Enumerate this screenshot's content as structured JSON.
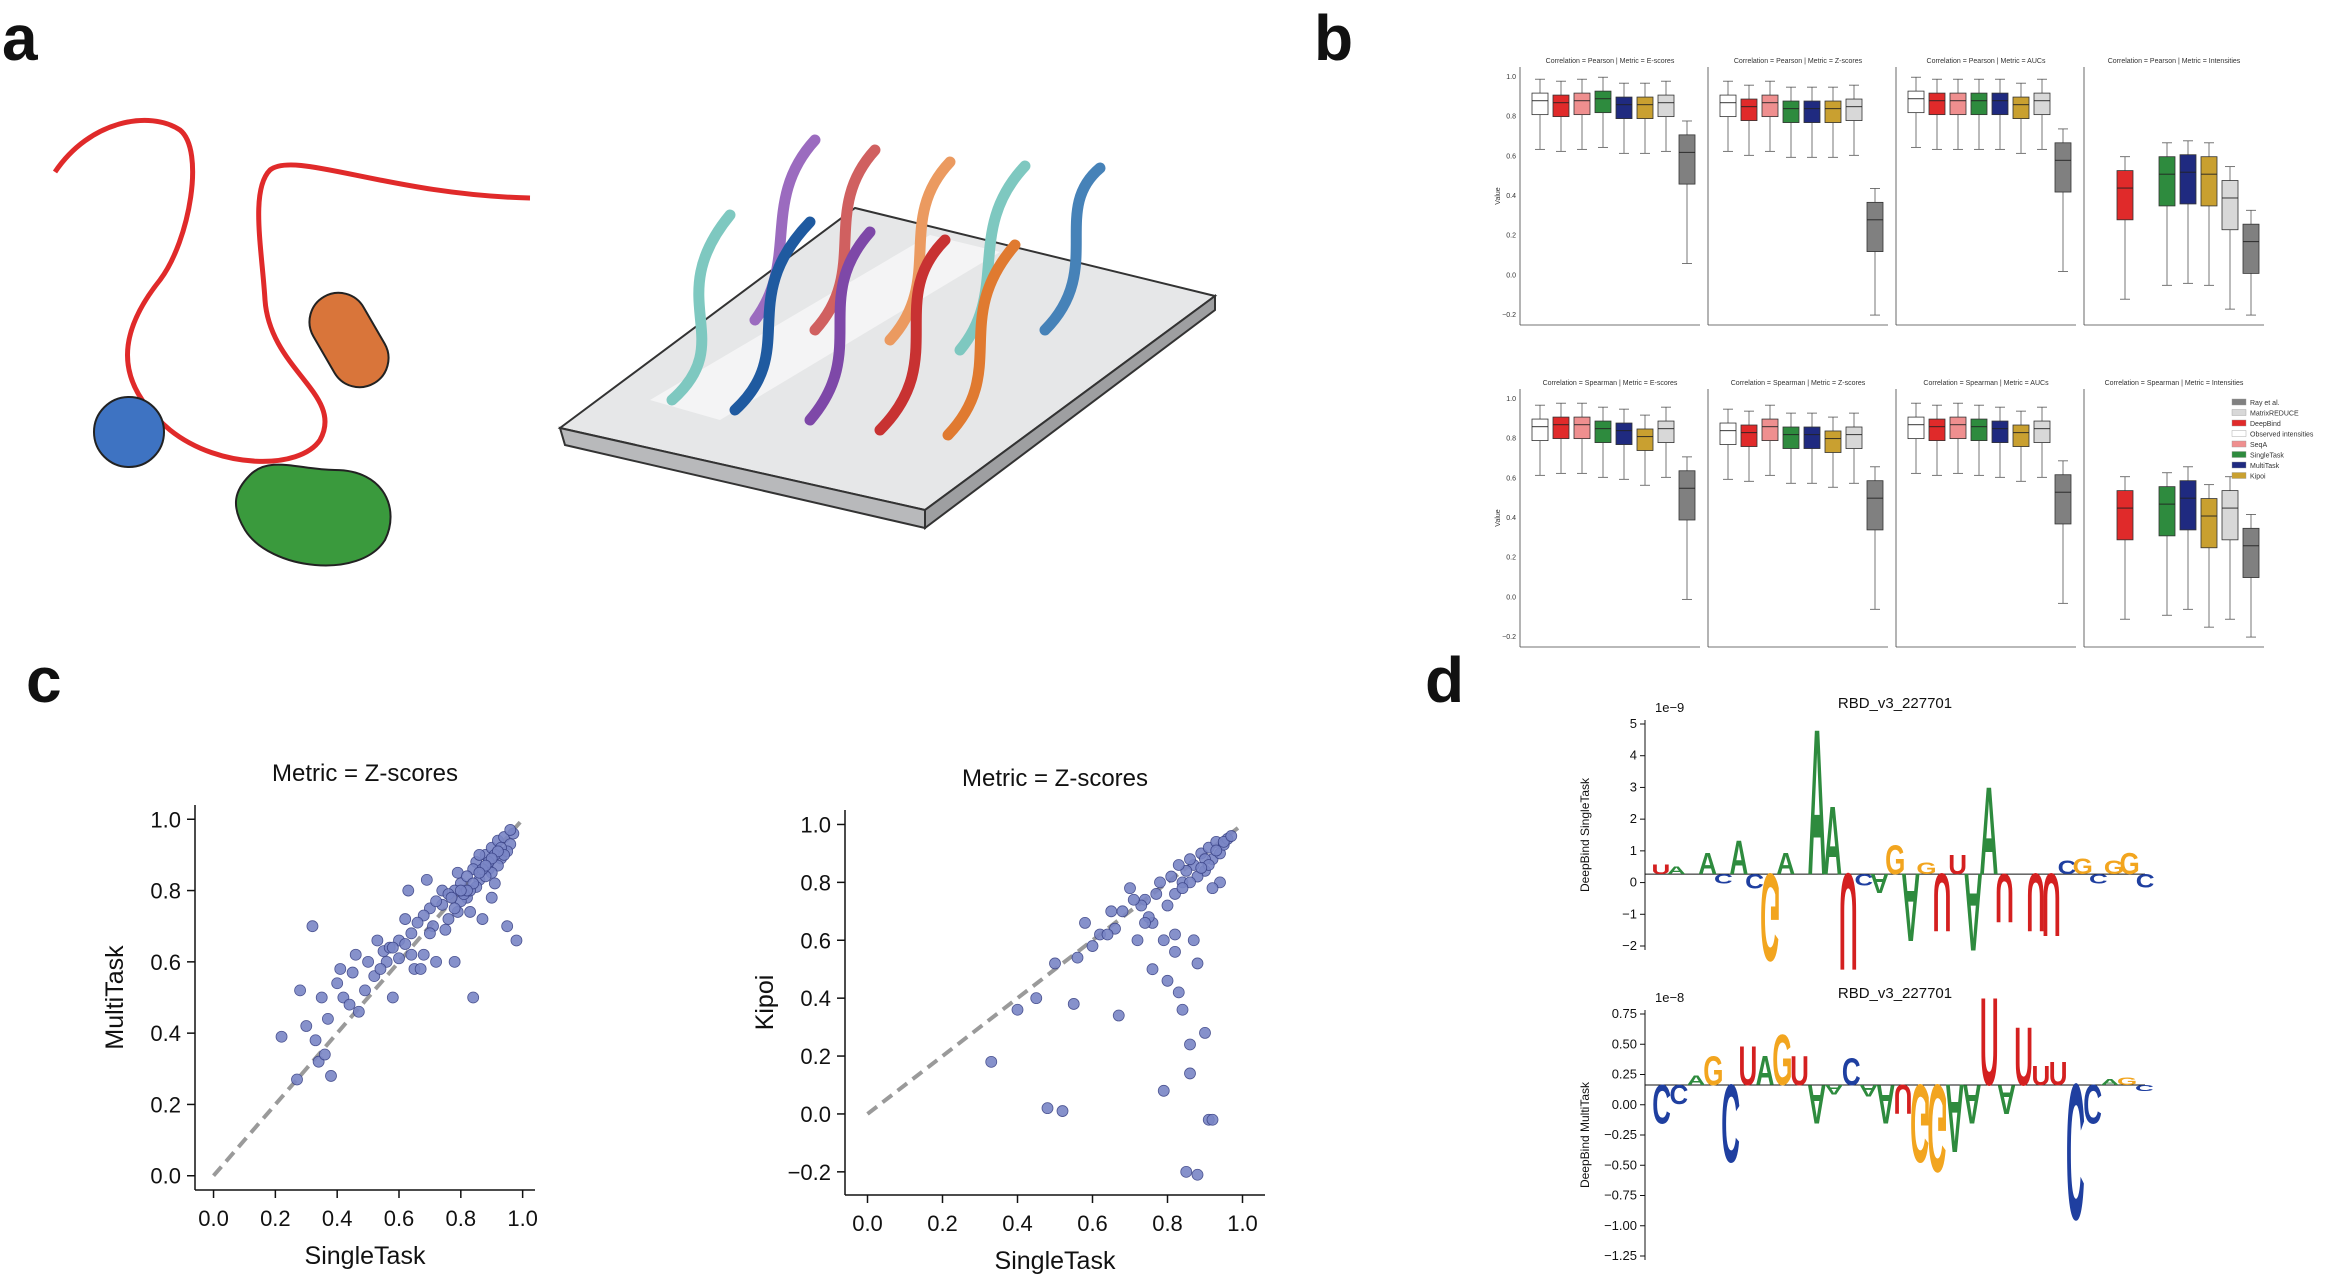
{
  "panel_labels": {
    "a": "a",
    "b": "b",
    "c": "c",
    "d": "d"
  },
  "colors": {
    "raw_string": "#e02a2a",
    "protein_blue": "#3e73c2",
    "protein_orange": "#d9753a",
    "protein_green": "#3a9a3d",
    "scatter_point": "#7a86c6",
    "diagonal": "#9a9a9a"
  },
  "panel_b": {
    "legend": [
      "Ray et al.",
      "MatrixREDUCE",
      "DeepBind",
      "Observed intensities",
      "SeqA",
      "SingleTask",
      "MultiTask",
      "Kipoi"
    ],
    "legend_colors": [
      "#808080",
      "#d8d8d8",
      "#e02a2a",
      "#ffffff",
      "#ef8f8f",
      "#2e8b3e",
      "#1f2a80",
      "#c9a030"
    ],
    "ylabel": "Value",
    "yticks": [
      "1.0",
      "0.8",
      "0.6",
      "0.4",
      "0.2",
      "0.0",
      "−0.2"
    ],
    "subplots": [
      {
        "title": "Correlation = Pearson | Metric = E-scores"
      },
      {
        "title": "Correlation = Pearson | Metric = Z-scores"
      },
      {
        "title": "Correlation = Pearson | Metric = AUCs"
      },
      {
        "title": "Correlation = Pearson | Metric = Intensities"
      },
      {
        "title": "Correlation = Spearman | Metric = E-scores"
      },
      {
        "title": "Correlation = Spearman | Metric = Z-scores"
      },
      {
        "title": "Correlation = Spearman | Metric = AUCs"
      },
      {
        "title": "Correlation = Spearman | Metric = Intensities"
      }
    ]
  },
  "chart_data": [
    {
      "type": "scatter",
      "title": "Metric = Z-scores",
      "xlabel": "SingleTask",
      "ylabel": "MultiTask",
      "xlim": [
        -0.06,
        1.04
      ],
      "ylim": [
        -0.04,
        1.04
      ],
      "xticks": [
        "0.0",
        "0.2",
        "0.4",
        "0.6",
        "0.8",
        "1.0"
      ],
      "yticks": [
        "0.0",
        "0.2",
        "0.4",
        "0.6",
        "0.8",
        "1.0"
      ],
      "diagonal": true,
      "points": [
        [
          0.22,
          0.39
        ],
        [
          0.27,
          0.27
        ],
        [
          0.28,
          0.52
        ],
        [
          0.3,
          0.42
        ],
        [
          0.32,
          0.7
        ],
        [
          0.33,
          0.38
        ],
        [
          0.34,
          0.32
        ],
        [
          0.36,
          0.34
        ],
        [
          0.38,
          0.28
        ],
        [
          0.4,
          0.54
        ],
        [
          0.42,
          0.5
        ],
        [
          0.45,
          0.57
        ],
        [
          0.47,
          0.46
        ],
        [
          0.5,
          0.6
        ],
        [
          0.52,
          0.56
        ],
        [
          0.55,
          0.63
        ],
        [
          0.58,
          0.5
        ],
        [
          0.6,
          0.66
        ],
        [
          0.62,
          0.72
        ],
        [
          0.64,
          0.68
        ],
        [
          0.65,
          0.58
        ],
        [
          0.68,
          0.62
        ],
        [
          0.7,
          0.75
        ],
        [
          0.72,
          0.6
        ],
        [
          0.74,
          0.8
        ],
        [
          0.76,
          0.72
        ],
        [
          0.78,
          0.6
        ],
        [
          0.8,
          0.82
        ],
        [
          0.82,
          0.78
        ],
        [
          0.84,
          0.5
        ],
        [
          0.85,
          0.88
        ],
        [
          0.86,
          0.83
        ],
        [
          0.87,
          0.72
        ],
        [
          0.88,
          0.9
        ],
        [
          0.89,
          0.86
        ],
        [
          0.9,
          0.92
        ],
        [
          0.91,
          0.82
        ],
        [
          0.92,
          0.94
        ],
        [
          0.93,
          0.89
        ],
        [
          0.94,
          0.95
        ],
        [
          0.95,
          0.7
        ],
        [
          0.96,
          0.93
        ],
        [
          0.98,
          0.66
        ],
        [
          0.97,
          0.96
        ],
        [
          0.9,
          0.78
        ],
        [
          0.83,
          0.74
        ],
        [
          0.79,
          0.85
        ],
        [
          0.75,
          0.69
        ],
        [
          0.71,
          0.7
        ],
        [
          0.69,
          0.83
        ],
        [
          0.67,
          0.58
        ],
        [
          0.63,
          0.8
        ],
        [
          0.57,
          0.64
        ],
        [
          0.53,
          0.66
        ],
        [
          0.49,
          0.52
        ],
        [
          0.46,
          0.62
        ],
        [
          0.44,
          0.48
        ],
        [
          0.41,
          0.58
        ],
        [
          0.37,
          0.44
        ],
        [
          0.35,
          0.5
        ],
        [
          0.92,
          0.87
        ],
        [
          0.9,
          0.85
        ],
        [
          0.88,
          0.84
        ],
        [
          0.86,
          0.9
        ],
        [
          0.84,
          0.86
        ],
        [
          0.82,
          0.84
        ],
        [
          0.8,
          0.77
        ],
        [
          0.78,
          0.8
        ],
        [
          0.76,
          0.79
        ],
        [
          0.74,
          0.76
        ],
        [
          0.72,
          0.77
        ],
        [
          0.7,
          0.68
        ],
        [
          0.68,
          0.73
        ],
        [
          0.66,
          0.71
        ],
        [
          0.64,
          0.62
        ],
        [
          0.62,
          0.65
        ],
        [
          0.6,
          0.61
        ],
        [
          0.58,
          0.64
        ],
        [
          0.56,
          0.6
        ],
        [
          0.54,
          0.58
        ],
        [
          0.95,
          0.91
        ],
        [
          0.93,
          0.92
        ],
        [
          0.91,
          0.9
        ],
        [
          0.89,
          0.88
        ],
        [
          0.87,
          0.86
        ],
        [
          0.85,
          0.81
        ],
        [
          0.83,
          0.8
        ],
        [
          0.81,
          0.79
        ],
        [
          0.79,
          0.74
        ],
        [
          0.77,
          0.78
        ],
        [
          0.96,
          0.97
        ],
        [
          0.94,
          0.9
        ],
        [
          0.92,
          0.91
        ],
        [
          0.9,
          0.89
        ],
        [
          0.88,
          0.87
        ],
        [
          0.86,
          0.85
        ],
        [
          0.84,
          0.82
        ],
        [
          0.82,
          0.8
        ],
        [
          0.8,
          0.8
        ],
        [
          0.78,
          0.75
        ]
      ]
    },
    {
      "type": "scatter",
      "title": "Metric = Z-scores",
      "xlabel": "SingleTask",
      "ylabel": "Kipoi",
      "xlim": [
        -0.06,
        1.06
      ],
      "ylim": [
        -0.28,
        1.05
      ],
      "xticks": [
        "0.0",
        "0.2",
        "0.4",
        "0.6",
        "0.8",
        "1.0"
      ],
      "yticks": [
        "−0.2",
        "0.0",
        "0.2",
        "0.4",
        "0.6",
        "0.8",
        "1.0"
      ],
      "diagonal": true,
      "points": [
        [
          0.33,
          0.18
        ],
        [
          0.48,
          0.02
        ],
        [
          0.52,
          0.01
        ],
        [
          0.55,
          0.38
        ],
        [
          0.58,
          0.66
        ],
        [
          0.62,
          0.62
        ],
        [
          0.65,
          0.7
        ],
        [
          0.67,
          0.34
        ],
        [
          0.7,
          0.78
        ],
        [
          0.72,
          0.6
        ],
        [
          0.74,
          0.74
        ],
        [
          0.76,
          0.66
        ],
        [
          0.78,
          0.8
        ],
        [
          0.79,
          0.08
        ],
        [
          0.8,
          0.46
        ],
        [
          0.81,
          0.82
        ],
        [
          0.82,
          0.62
        ],
        [
          0.83,
          0.42
        ],
        [
          0.84,
          0.36
        ],
        [
          0.85,
          -0.2
        ],
        [
          0.86,
          0.24
        ],
        [
          0.87,
          0.6
        ],
        [
          0.88,
          0.52
        ],
        [
          0.88,
          -0.21
        ],
        [
          0.9,
          0.28
        ],
        [
          0.91,
          -0.02
        ],
        [
          0.89,
          0.9
        ],
        [
          0.9,
          0.84
        ],
        [
          0.91,
          0.92
        ],
        [
          0.92,
          0.88
        ],
        [
          0.93,
          0.94
        ],
        [
          0.94,
          0.9
        ],
        [
          0.95,
          0.93
        ],
        [
          0.96,
          0.95
        ],
        [
          0.94,
          0.8
        ],
        [
          0.92,
          0.78
        ],
        [
          0.87,
          0.86
        ],
        [
          0.86,
          0.88
        ],
        [
          0.85,
          0.84
        ],
        [
          0.84,
          0.8
        ],
        [
          0.83,
          0.86
        ],
        [
          0.82,
          0.76
        ],
        [
          0.8,
          0.72
        ],
        [
          0.77,
          0.76
        ],
        [
          0.75,
          0.68
        ],
        [
          0.73,
          0.72
        ],
        [
          0.71,
          0.74
        ],
        [
          0.68,
          0.7
        ],
        [
          0.66,
          0.64
        ],
        [
          0.64,
          0.62
        ],
        [
          0.6,
          0.58
        ],
        [
          0.56,
          0.54
        ],
        [
          0.5,
          0.52
        ],
        [
          0.45,
          0.4
        ],
        [
          0.4,
          0.36
        ],
        [
          0.9,
          0.88
        ],
        [
          0.88,
          0.82
        ],
        [
          0.86,
          0.8
        ],
        [
          0.84,
          0.78
        ],
        [
          0.86,
          0.14
        ],
        [
          0.92,
          -0.02
        ],
        [
          0.82,
          0.56
        ],
        [
          0.79,
          0.6
        ],
        [
          0.76,
          0.5
        ],
        [
          0.74,
          0.66
        ],
        [
          0.93,
          0.91
        ],
        [
          0.91,
          0.86
        ],
        [
          0.89,
          0.85
        ],
        [
          0.95,
          0.94
        ],
        [
          0.97,
          0.96
        ]
      ]
    }
  ],
  "panel_d": {
    "top": {
      "title": "RBD_v3_227701",
      "ylabel": "DeepBind SingleTask",
      "exponent": "1e−9",
      "yticks": [
        "5",
        "4",
        "3",
        "2",
        "1",
        "0",
        "−1",
        "−2"
      ]
    },
    "bottom": {
      "title": "RBD_v3_227701",
      "ylabel": "DeepBind MultiTask",
      "exponent": "1e−8",
      "yticks": [
        "0.75",
        "0.50",
        "0.25",
        "0.00",
        "−0.25",
        "−0.50",
        "−0.75",
        "−1.00",
        "−1.25"
      ]
    }
  }
}
